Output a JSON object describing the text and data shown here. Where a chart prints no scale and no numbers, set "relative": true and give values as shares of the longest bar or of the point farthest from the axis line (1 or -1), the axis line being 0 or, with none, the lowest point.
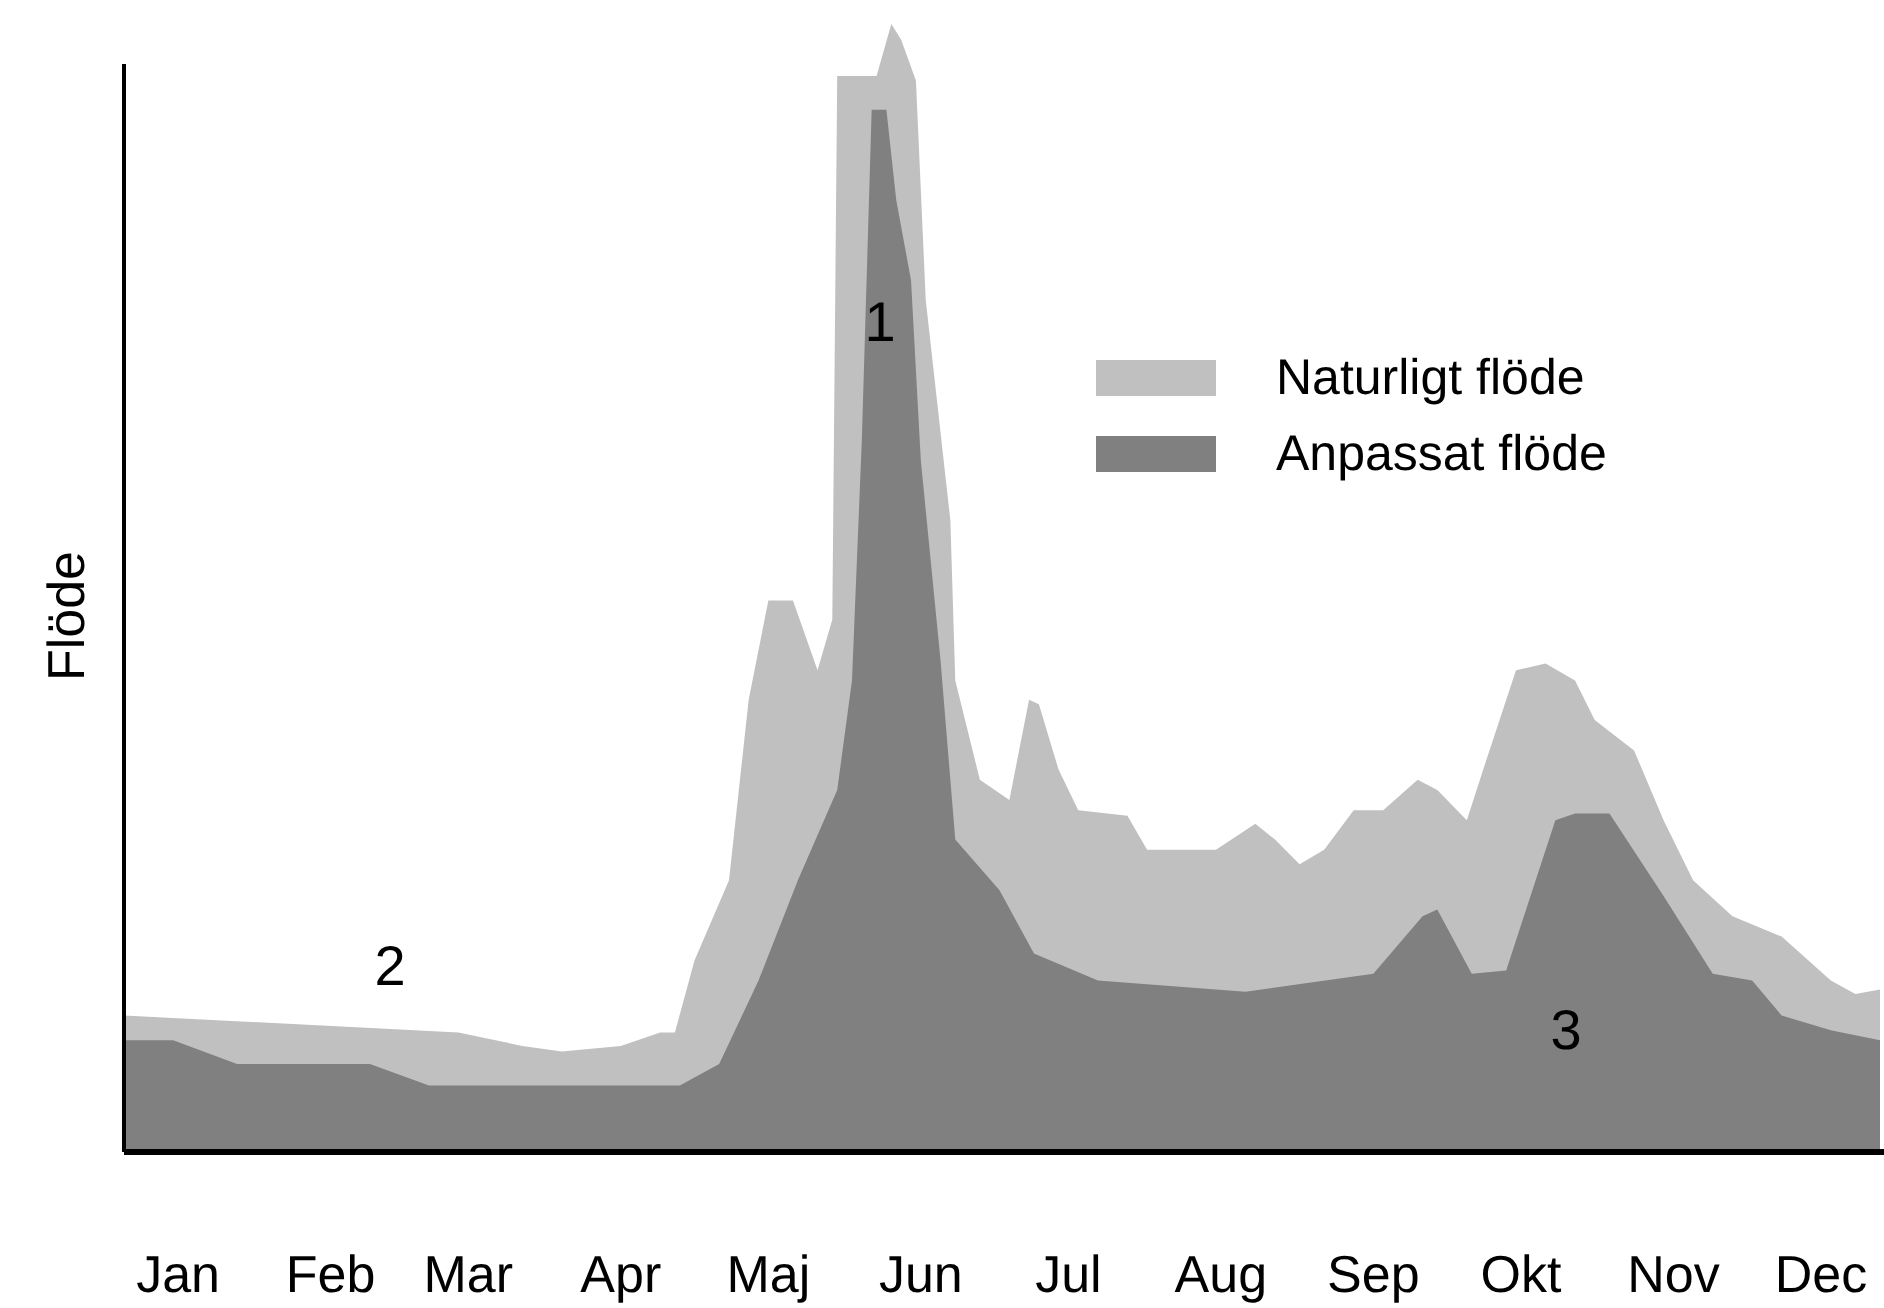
{
  "chart_data": {
    "type": "area",
    "relative": true,
    "ylabel": "Flöde",
    "tick_labels": "x",
    "legend": "top right",
    "xlim": [
      "--01-04",
      "--12-27"
    ],
    "xticks": [
      {
        "value": "--01-15",
        "label": "Jan"
      },
      {
        "value": "--02-15",
        "label": "Feb"
      },
      {
        "value": "--03-15",
        "label": "Mar"
      },
      {
        "value": "--04-15",
        "label": "Apr"
      },
      {
        "value": "--05-15",
        "label": "Maj"
      },
      {
        "value": "--06-15",
        "label": "Jun"
      },
      {
        "value": "--07-15",
        "label": "Jul"
      },
      {
        "value": "--08-15",
        "label": "Aug"
      },
      {
        "value": "--09-15",
        "label": "Sep"
      },
      {
        "value": "--10-15",
        "label": "Okt"
      },
      {
        "value": "--11-15",
        "label": "Nov"
      },
      {
        "value": "--12-15",
        "label": "Dec"
      }
    ],
    "series": [
      {
        "name": "Naturligt flöde",
        "color": "#c0c0c0",
        "x": [
          "--01-04",
          "--03-13",
          "--03-26",
          "--04-03",
          "--04-15",
          "--04-23",
          "--04-26",
          "--04-30",
          "--05-07",
          "--05-11",
          "--05-15",
          "--05-20",
          "--05-25",
          "--05-28",
          "--05-29",
          "--06-02",
          "--06-06",
          "--06-09",
          "--06-11",
          "--06-14",
          "--06-16",
          "--06-21",
          "--06-22",
          "--06-27",
          "--07-03",
          "--07-07",
          "--07-09",
          "--07-13",
          "--07-17",
          "--07-27",
          "--07-31",
          "--08-14",
          "--08-22",
          "--08-26",
          "--08-31",
          "--09-05",
          "--09-11",
          "--09-17",
          "--09-24",
          "--09-28",
          "--10-04",
          "--10-08",
          "--10-14",
          "--10-20",
          "--10-26",
          "--10-30",
          "--11-07",
          "--11-13",
          "--11-19",
          "--11-27",
          "--12-07",
          "--12-17",
          "--12-22",
          "--12-27"
        ],
        "values": [
          0.121,
          0.106,
          0.094,
          0.089,
          0.094,
          0.106,
          0.106,
          0.17,
          0.241,
          0.401,
          0.489,
          0.489,
          0.427,
          0.472,
          0.954,
          0.954,
          0.954,
          1,
          0.986,
          0.95,
          0.755,
          0.56,
          0.418,
          0.33,
          0.312,
          0.401,
          0.397,
          0.339,
          0.303,
          0.298,
          0.268,
          0.268,
          0.291,
          0.277,
          0.255,
          0.268,
          0.303,
          0.303,
          0.33,
          0.321,
          0.294,
          0.348,
          0.427,
          0.433,
          0.418,
          0.383,
          0.356,
          0.294,
          0.241,
          0.209,
          0.191,
          0.152,
          0.14,
          0.144
        ]
      },
      {
        "name": "Anpassat flöde",
        "color": "#808080",
        "x": [
          "--01-04",
          "--01-14",
          "--01-27",
          "--02-23",
          "--03-07",
          "--04-27",
          "--05-05",
          "--05-13",
          "--05-21",
          "--05-29",
          "--06-01",
          "--06-03",
          "--06-05",
          "--06-08",
          "--06-10",
          "--06-13",
          "--06-15",
          "--06-19",
          "--06-22",
          "--07-01",
          "--07-08",
          "--07-21",
          "--08-20",
          "--09-15",
          "--09-25",
          "--09-28",
          "--10-05",
          "--10-12",
          "--10-18",
          "--10-22",
          "--10-26",
          "--11-02",
          "--11-13",
          "--11-23",
          "--12-01",
          "--12-07",
          "--12-17",
          "--12-27"
        ],
        "values": [
          0.099,
          0.099,
          0.078,
          0.078,
          0.059,
          0.059,
          0.078,
          0.152,
          0.241,
          0.321,
          0.418,
          0.631,
          0.924,
          0.924,
          0.844,
          0.773,
          0.613,
          0.436,
          0.277,
          0.232,
          0.176,
          0.152,
          0.142,
          0.158,
          0.209,
          0.215,
          0.158,
          0.161,
          0.241,
          0.294,
          0.3,
          0.3,
          0.227,
          0.158,
          0.152,
          0.121,
          0.108,
          0.099
        ]
      }
    ],
    "annotations": [
      "1",
      "2",
      "3"
    ]
  }
}
